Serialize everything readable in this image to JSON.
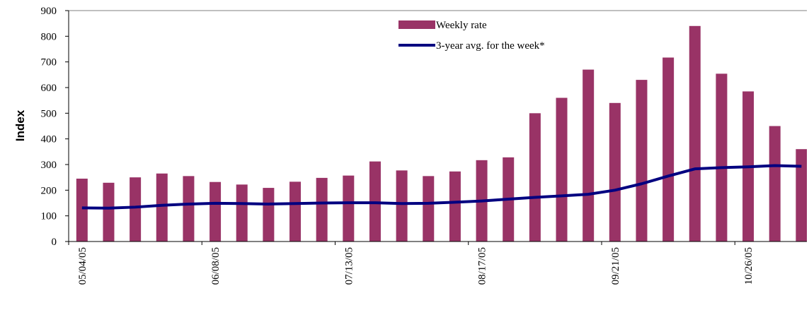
{
  "chart_data": {
    "type": "bar-line",
    "y_label": "Index",
    "categories": [
      "05/04/05",
      null,
      null,
      null,
      null,
      "06/08/05",
      null,
      null,
      null,
      null,
      "07/13/05",
      null,
      null,
      null,
      null,
      "08/17/05",
      null,
      null,
      null,
      null,
      "09/21/05",
      null,
      null,
      null,
      null,
      "10/26/05",
      null,
      null
    ],
    "series": [
      {
        "name": "Weekly rate",
        "type": "bar",
        "color": "#993366",
        "values": [
          245,
          229,
          250,
          265,
          255,
          232,
          222,
          209,
          233,
          248,
          257,
          312,
          277,
          255,
          273,
          317,
          328,
          500,
          560,
          670,
          540,
          630,
          717,
          840,
          654,
          585,
          450,
          360
        ]
      },
      {
        "name": "3-year avg. for the week*",
        "type": "line",
        "color": "#000080",
        "values": [
          131,
          130,
          134,
          141,
          146,
          149,
          148,
          146,
          148,
          150,
          151,
          151,
          148,
          149,
          153,
          158,
          165,
          172,
          178,
          184,
          200,
          225,
          255,
          283,
          288,
          291,
          296,
          293
        ]
      }
    ],
    "ylim": [
      0,
      900
    ],
    "yticks": [
      0,
      100,
      200,
      300,
      400,
      500,
      600,
      700,
      800,
      900
    ],
    "grid": false,
    "legend": "top"
  }
}
